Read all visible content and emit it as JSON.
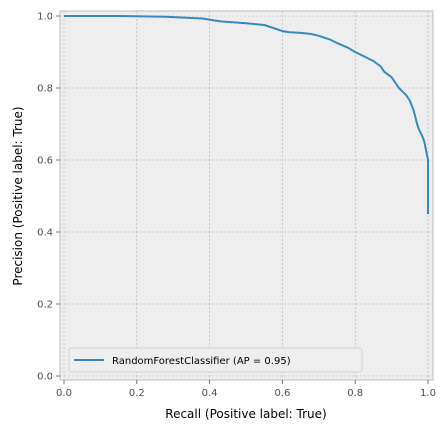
{
  "chart_data": {
    "type": "line",
    "title": "",
    "xlabel": "Recall (Positive label: True)",
    "ylabel": "Precision (Positive label: True)",
    "xlim": [
      0.0,
      1.0
    ],
    "ylim": [
      0.0,
      1.0
    ],
    "xticks": [
      "0.0",
      "0.2",
      "0.4",
      "0.6",
      "0.8",
      "1.0"
    ],
    "yticks": [
      "0.0",
      "0.2",
      "0.4",
      "0.6",
      "0.8",
      "1.0"
    ],
    "grid": true,
    "legend_position": "lower-left",
    "series": [
      {
        "name": "RandomForestClassifier (AP = 0.95)",
        "color": "#348ABD",
        "x": [
          0.0,
          0.15,
          0.28,
          0.38,
          0.43,
          0.5,
          0.55,
          0.58,
          0.6,
          0.62,
          0.65,
          0.68,
          0.7,
          0.73,
          0.75,
          0.78,
          0.8,
          0.82,
          0.85,
          0.87,
          0.88,
          0.9,
          0.91,
          0.92,
          0.93,
          0.94,
          0.95,
          0.96,
          0.965,
          0.97,
          0.975,
          0.98,
          0.985,
          0.99,
          0.995,
          1.0,
          1.0
        ],
        "y": [
          1.0,
          1.0,
          0.998,
          0.993,
          0.985,
          0.98,
          0.975,
          0.965,
          0.958,
          0.955,
          0.953,
          0.95,
          0.945,
          0.935,
          0.925,
          0.912,
          0.9,
          0.89,
          0.875,
          0.86,
          0.845,
          0.83,
          0.815,
          0.8,
          0.79,
          0.78,
          0.765,
          0.74,
          0.72,
          0.7,
          0.685,
          0.675,
          0.665,
          0.65,
          0.625,
          0.6,
          0.45
        ]
      }
    ]
  }
}
